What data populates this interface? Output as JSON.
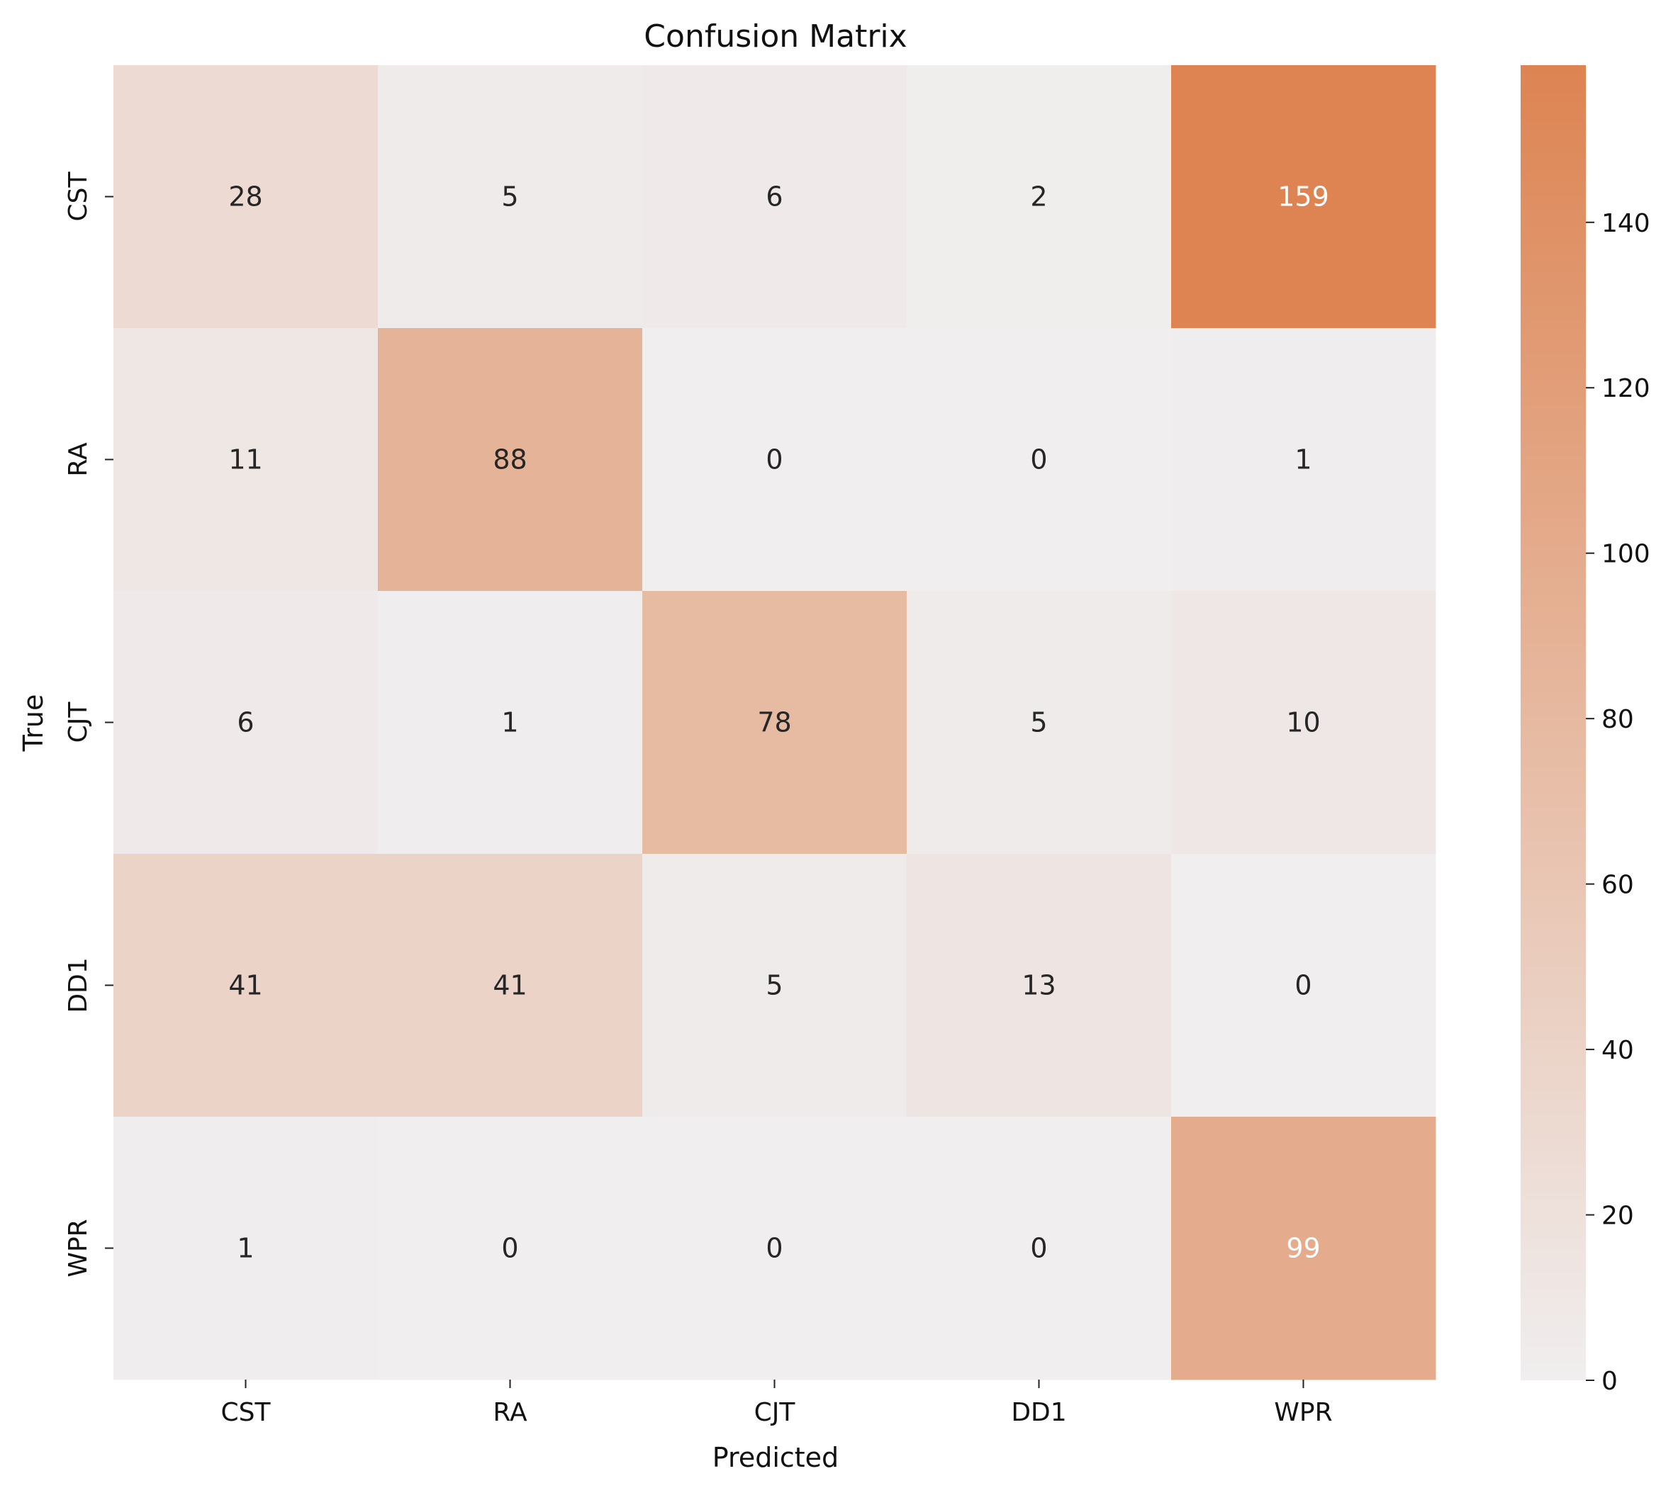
{
  "chart_data": {
    "type": "heatmap",
    "title": "Confusion Matrix",
    "xlabel": "Predicted",
    "ylabel": "True",
    "x_categories": [
      "CST",
      "RA",
      "CJT",
      "DD1",
      "WPR"
    ],
    "y_categories": [
      "CST",
      "RA",
      "CJT",
      "DD1",
      "WPR"
    ],
    "values": [
      [
        28,
        5,
        6,
        2,
        159
      ],
      [
        11,
        88,
        0,
        0,
        1
      ],
      [
        6,
        1,
        78,
        5,
        10
      ],
      [
        41,
        41,
        5,
        13,
        0
      ],
      [
        1,
        0,
        0,
        0,
        99
      ]
    ],
    "colorbar": {
      "min": 0,
      "max": 159,
      "ticks": [
        0,
        20,
        40,
        60,
        80,
        100,
        120,
        140
      ],
      "low_color": "#f0eeef",
      "high_color": "#dd8452"
    },
    "text_color_dark": "#262626",
    "text_color_light": "#ffffff"
  }
}
